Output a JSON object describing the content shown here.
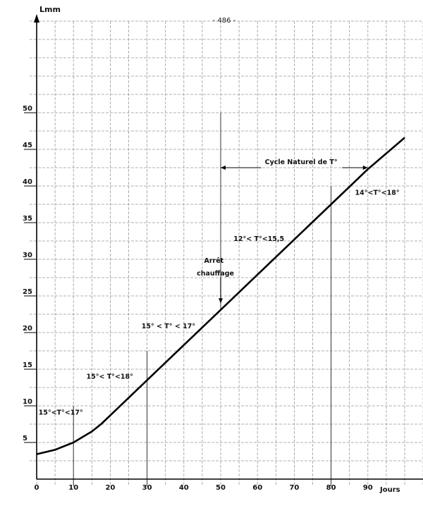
{
  "page_number": "- 486 -",
  "chart_data": {
    "type": "line",
    "title": "",
    "xlabel": "Jours",
    "ylabel": "Lmm",
    "xlim": [
      0,
      105
    ],
    "ylim": [
      0,
      62.5
    ],
    "grid": true,
    "x_ticks": [
      0,
      10,
      20,
      30,
      40,
      50,
      60,
      70,
      80,
      90
    ],
    "y_ticks": [
      5,
      10,
      15,
      20,
      25,
      30,
      35,
      40,
      45,
      50
    ],
    "series": [
      {
        "x": [
          0,
          5,
          10,
          15,
          17.5,
          20,
          30,
          40,
          50,
          60,
          70,
          80,
          90,
          100
        ],
        "y": [
          3.4,
          4.0,
          5.0,
          6.5,
          7.5,
          8.7,
          13.5,
          18.3,
          23.1,
          27.9,
          32.7,
          37.5,
          42.3,
          46.6
        ]
      }
    ],
    "annotations": [
      {
        "text": "15°<T°<17°",
        "x": 0.5,
        "y": 8.8
      },
      {
        "text": "15°< T°<18°",
        "x": 13.5,
        "y": 13.7
      },
      {
        "text": "15° < T° < 17°",
        "x": 28.5,
        "y": 20.6
      },
      {
        "text": "Arrêt",
        "x": 45.5,
        "y": 29.5
      },
      {
        "text": "chauffage",
        "x": 43.5,
        "y": 27.8
      },
      {
        "text": "12°< T°<15,5",
        "x": 53.5,
        "y": 32.5
      },
      {
        "text": "14°<T°<18°",
        "x": 86.5,
        "y": 38.8
      },
      {
        "text": "Cycle Naturel de T°",
        "x": 62,
        "y": 43
      }
    ],
    "cycle_arrow": {
      "from": 50,
      "to": 90,
      "y": 42.5
    },
    "arret_arrow": {
      "x": 50,
      "from": 27.5,
      "to": 24
    }
  }
}
